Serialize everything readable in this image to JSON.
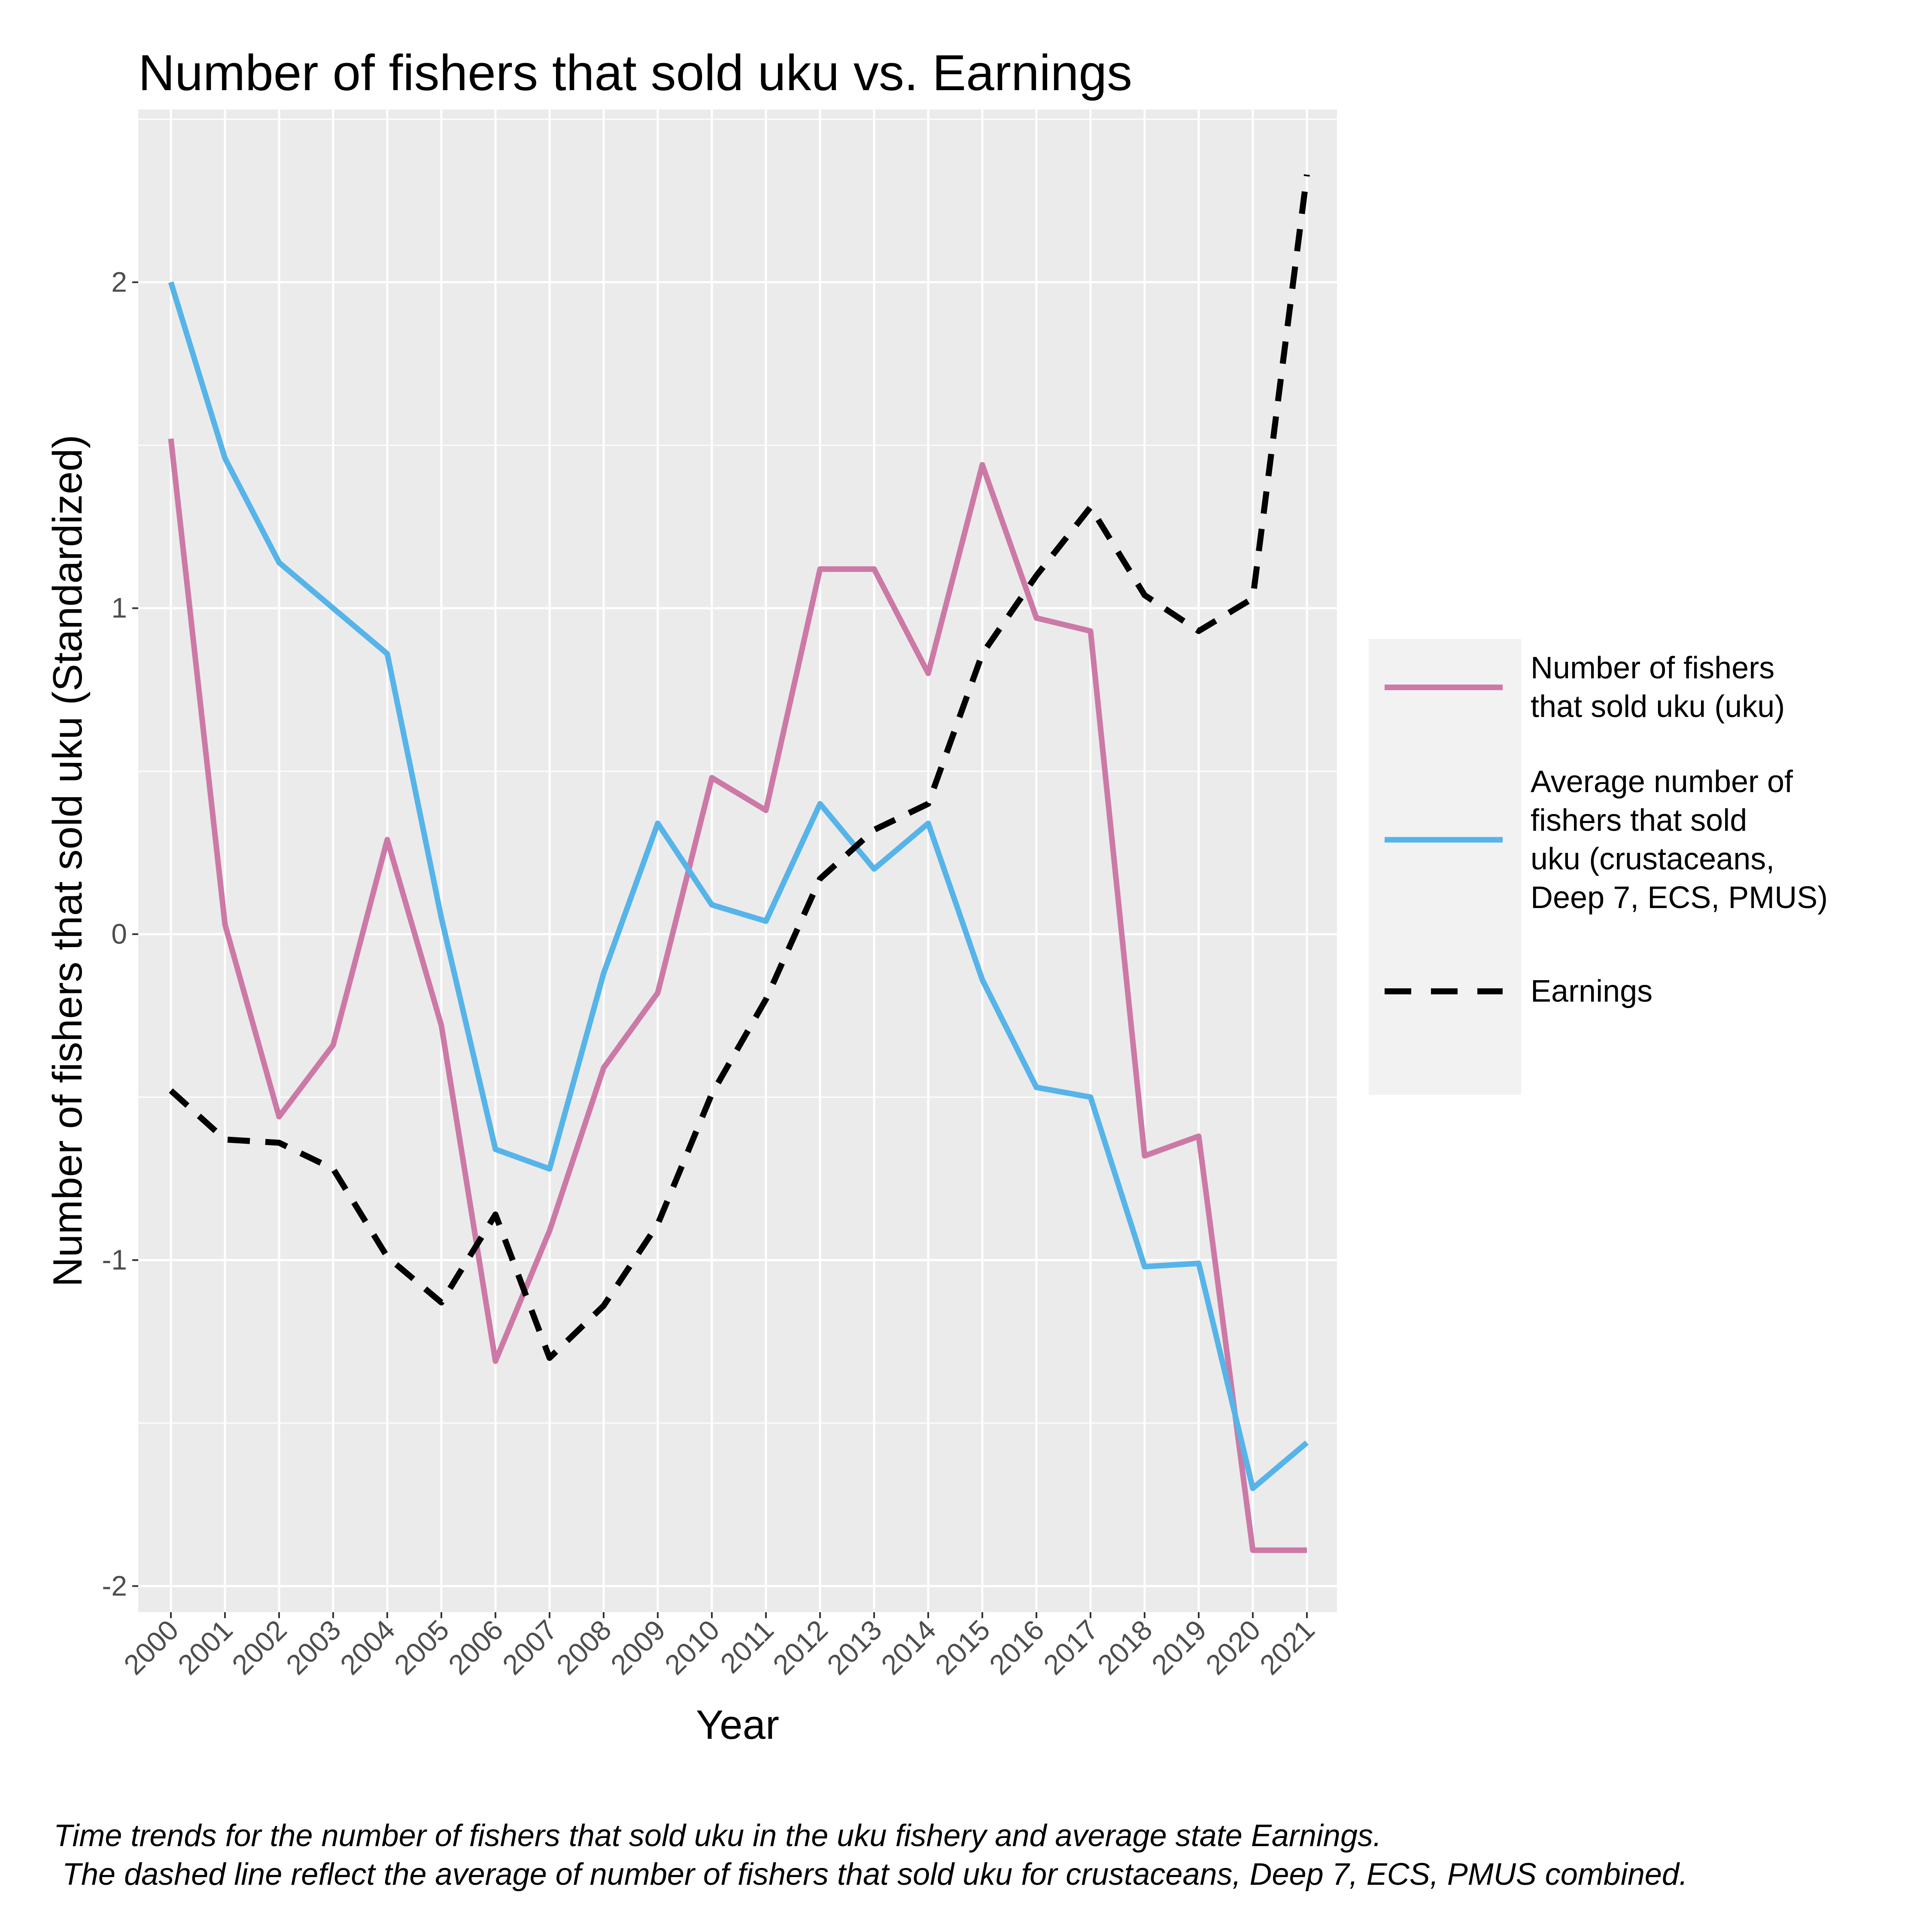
{
  "chart_data": {
    "type": "line",
    "title": "Number of fishers that sold uku vs. Earnings",
    "xlabel": "Year",
    "ylabel": "Number of fishers that sold uku (Standardized)",
    "x": [
      "2000",
      "2001",
      "2002",
      "2003",
      "2004",
      "2005",
      "2006",
      "2007",
      "2008",
      "2009",
      "2010",
      "2011",
      "2012",
      "2013",
      "2014",
      "2015",
      "2016",
      "2017",
      "2018",
      "2019",
      "2020",
      "2021"
    ],
    "yticks": [
      "-2",
      "-1",
      "0",
      "1",
      "2"
    ],
    "ylim": [
      -2.08,
      2.53
    ],
    "grid": true,
    "legend_position": "right",
    "series": [
      {
        "name": "Number of fishers that sold uku (uku)",
        "legend_lines": [
          "Number of fishers",
          "that sold uku (uku)"
        ],
        "color": "#CC79A7",
        "dash": "solid",
        "values": [
          1.52,
          0.03,
          -0.56,
          -0.34,
          0.29,
          -0.28,
          -1.31,
          -0.91,
          -0.41,
          -0.18,
          0.48,
          0.38,
          1.12,
          1.12,
          0.8,
          1.44,
          0.97,
          0.93,
          -0.68,
          -0.62,
          -1.89,
          -1.89
        ]
      },
      {
        "name": "Average number of fishers that sold uku (crustaceans, Deep 7, ECS, PMUS)",
        "legend_lines": [
          "Average number of",
          "fishers that sold",
          "uku (crustaceans,",
          "Deep 7, ECS, PMUS)"
        ],
        "color": "#56B4E9",
        "dash": "solid",
        "values": [
          2.0,
          1.46,
          1.14,
          1.0,
          0.86,
          0.05,
          -0.66,
          -0.72,
          -0.12,
          0.34,
          0.09,
          0.04,
          0.4,
          0.2,
          0.34,
          -0.14,
          -0.47,
          -0.5,
          -1.02,
          -1.01,
          -1.7,
          -1.56
        ]
      },
      {
        "name": "Earnings",
        "legend_lines": [
          "Earnings"
        ],
        "color": "#000000",
        "dash": "dashed",
        "values": [
          -0.48,
          -0.63,
          -0.64,
          -0.72,
          -0.99,
          -1.13,
          -0.86,
          -1.3,
          -1.14,
          -0.89,
          -0.49,
          -0.2,
          0.17,
          0.32,
          0.4,
          0.86,
          1.1,
          1.31,
          1.04,
          0.93,
          1.03,
          2.33
        ]
      }
    ],
    "caption": [
      "Time trends for the number of fishers that sold uku in the uku fishery and average state Earnings.",
      " The dashed line reflect the average of number of fishers that sold uku for crustaceans, Deep 7, ECS, PMUS combined."
    ]
  }
}
